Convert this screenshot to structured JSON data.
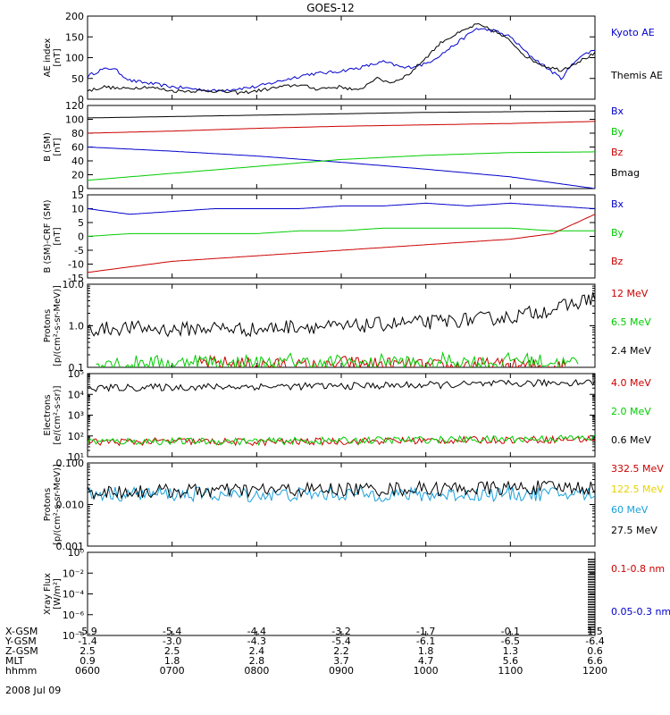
{
  "title": "GOES-12",
  "date_label": "2008 Jul 09",
  "colors": {
    "black": "#000000",
    "blue": "#0000cc",
    "green": "#00cc00",
    "red": "#cc0000",
    "cyan": "#1aa0dc",
    "yellow": "#e6d200"
  },
  "x_ticks": [
    "0600",
    "0700",
    "0800",
    "0900",
    "1000",
    "1100",
    "1200"
  ],
  "ephemeris": [
    {
      "label": "X-GSM",
      "values": [
        "-5.9",
        "-5.4",
        "-4.4",
        "-3.2",
        "-1.7",
        "-0.1",
        "1.5"
      ]
    },
    {
      "label": "Y-GSM",
      "values": [
        "-1.4",
        "-3.0",
        "-4.3",
        "-5.4",
        "-6.1",
        "-6.5",
        "-6.4"
      ]
    },
    {
      "label": "Z-GSM",
      "values": [
        "2.5",
        "2.5",
        "2.4",
        "2.2",
        "1.8",
        "1.3",
        "0.6"
      ]
    },
    {
      "label": "MLT",
      "values": [
        "0.9",
        "1.8",
        "2.8",
        "3.7",
        "4.7",
        "5.6",
        "6.6"
      ]
    },
    {
      "label": "hhmm",
      "values": [
        "0600",
        "0700",
        "0800",
        "0900",
        "1000",
        "1100",
        "1200"
      ]
    }
  ],
  "chart_data": [
    {
      "type": "line",
      "id": "ae",
      "ylabel": [
        "AE index",
        "[nT]"
      ],
      "scale": "linear",
      "ylim": [
        0,
        200
      ],
      "yticks": [
        "0",
        "50",
        "100",
        "150",
        "200"
      ],
      "series": [
        {
          "name": "Kyoto AE",
          "color": "#0000cc",
          "x": [
            6.0,
            6.15,
            6.3,
            6.5,
            7.0,
            7.5,
            7.75,
            8.0,
            8.3,
            8.6,
            8.9,
            9.2,
            9.5,
            9.75,
            10.0,
            10.2,
            10.4,
            10.6,
            10.8,
            11.0,
            11.2,
            11.4,
            11.6,
            11.8,
            12.0
          ],
          "y": [
            55,
            70,
            75,
            45,
            30,
            20,
            25,
            30,
            45,
            60,
            65,
            75,
            90,
            75,
            85,
            110,
            140,
            170,
            165,
            150,
            110,
            80,
            50,
            100,
            120
          ]
        },
        {
          "name": "Themis AE",
          "color": "#000000",
          "x": [
            6.0,
            6.2,
            6.4,
            6.7,
            7.0,
            7.5,
            7.8,
            8.0,
            8.3,
            8.5,
            8.7,
            9.0,
            9.2,
            9.4,
            9.6,
            9.8,
            10.0,
            10.2,
            10.4,
            10.6,
            10.8,
            11.0,
            11.2,
            11.4,
            11.6,
            11.8,
            12.0
          ],
          "y": [
            20,
            30,
            25,
            30,
            20,
            20,
            15,
            20,
            30,
            35,
            25,
            30,
            20,
            50,
            40,
            60,
            100,
            140,
            160,
            180,
            165,
            140,
            100,
            80,
            70,
            90,
            110
          ]
        }
      ]
    },
    {
      "type": "line",
      "id": "bsm",
      "ylabel": [
        "B (SM)",
        "[nT]"
      ],
      "scale": "linear",
      "ylim": [
        0,
        120
      ],
      "yticks": [
        "0",
        "20",
        "40",
        "60",
        "80",
        "100",
        "120"
      ],
      "series": [
        {
          "name": "Bx",
          "color": "#0000cc",
          "x": [
            6,
            7,
            8,
            9,
            10,
            11,
            12
          ],
          "y": [
            60,
            54,
            47,
            38,
            28,
            17,
            0
          ]
        },
        {
          "name": "By",
          "color": "#00cc00",
          "x": [
            6,
            7,
            8,
            9,
            10,
            11,
            12
          ],
          "y": [
            12,
            22,
            32,
            42,
            48,
            52,
            53
          ]
        },
        {
          "name": "Bz",
          "color": "#cc0000",
          "x": [
            6,
            7,
            8,
            9,
            10,
            11,
            12
          ],
          "y": [
            80,
            83,
            87,
            90,
            92,
            94,
            97
          ]
        },
        {
          "name": "Bmag",
          "color": "#000000",
          "x": [
            6,
            7,
            8,
            9,
            10,
            11,
            12
          ],
          "y": [
            102,
            104,
            106,
            108,
            110,
            111,
            112
          ]
        }
      ]
    },
    {
      "type": "line",
      "id": "bres",
      "ylabel": [
        "B (SM)-CRF (SM)",
        "[nT]"
      ],
      "scale": "linear",
      "ylim": [
        -15,
        15
      ],
      "yticks": [
        "-15",
        "-10",
        "-5",
        "0",
        "5",
        "10",
        "15"
      ],
      "series": [
        {
          "name": "Bx",
          "color": "#0000cc",
          "x": [
            6,
            6.5,
            7,
            7.5,
            8,
            8.5,
            9,
            9.5,
            10,
            10.5,
            11,
            11.5,
            12
          ],
          "y": [
            10,
            8,
            9,
            10,
            10,
            10,
            11,
            11,
            12,
            11,
            12,
            11,
            10
          ]
        },
        {
          "name": "By",
          "color": "#00cc00",
          "x": [
            6,
            6.5,
            7,
            7.5,
            8,
            8.5,
            9,
            9.5,
            10,
            10.5,
            11,
            11.5,
            12
          ],
          "y": [
            0,
            1,
            1,
            1,
            1,
            2,
            2,
            3,
            3,
            3,
            3,
            2,
            2
          ]
        },
        {
          "name": "Bz",
          "color": "#cc0000",
          "x": [
            6,
            6.5,
            7,
            7.5,
            8,
            8.5,
            9,
            9.5,
            10,
            10.5,
            11,
            11.5,
            12
          ],
          "y": [
            -13,
            -11,
            -9,
            -8,
            -7,
            -6,
            -5,
            -4,
            -3,
            -2,
            -1,
            1,
            8
          ]
        }
      ]
    },
    {
      "type": "line",
      "id": "protons_low",
      "ylabel": [
        "Protons",
        "[p/(cm²-s-sr-MeV)]"
      ],
      "scale": "log",
      "ylim": [
        0.1,
        10
      ],
      "yticks": [
        "0.1",
        "1.0",
        "10.0"
      ],
      "series": [
        {
          "name": "12 MeV",
          "color": "#cc0000",
          "x": [
            7.3,
            7.35,
            8.9,
            8.95,
            10.4,
            10.45,
            11.6,
            11.65
          ],
          "y": [
            0.1,
            0.13,
            0.1,
            0.13,
            0.1,
            0.12,
            0.1,
            0.13
          ]
        },
        {
          "name": "6.5 MeV",
          "color": "#00cc00",
          "x": [
            6.1,
            6.2,
            6.5,
            6.6,
            7.1,
            7.2,
            7.7,
            7.8,
            8.3,
            8.4,
            8.8,
            8.9,
            9.4,
            9.5,
            10.1,
            10.2,
            10.9,
            11.0,
            11.7,
            11.8
          ],
          "y": [
            0.11,
            0.15,
            0.11,
            0.14,
            0.12,
            0.16,
            0.11,
            0.14,
            0.12,
            0.15,
            0.11,
            0.14,
            0.12,
            0.15,
            0.11,
            0.15,
            0.12,
            0.16,
            0.12,
            0.15
          ]
        },
        {
          "name": "2.4 MeV",
          "color": "#000000",
          "x": [
            6.0,
            6.5,
            7.0,
            7.5,
            8.0,
            8.5,
            9.0,
            9.5,
            10.0,
            10.5,
            11.0,
            11.5,
            11.8,
            12.0
          ],
          "y": [
            0.8,
            0.9,
            0.8,
            0.9,
            0.8,
            1.0,
            0.9,
            1.1,
            1.2,
            1.4,
            1.6,
            2.5,
            3.5,
            5.0
          ]
        }
      ]
    },
    {
      "type": "line",
      "id": "electrons",
      "ylabel": [
        "Electrons",
        "[e/(cm²-s-sr)]"
      ],
      "scale": "log",
      "ylim": [
        10,
        100000
      ],
      "yticks": [
        "10¹",
        "10²",
        "10³",
        "10⁴",
        "10⁵"
      ],
      "series": [
        {
          "name": "4.0 MeV",
          "color": "#cc0000",
          "x": [
            6,
            7,
            8,
            9,
            10,
            11,
            12
          ],
          "y": [
            50,
            55,
            50,
            55,
            60,
            65,
            70
          ]
        },
        {
          "name": "2.0 MeV",
          "color": "#00cc00",
          "x": [
            6,
            7,
            8,
            9,
            10,
            11,
            12
          ],
          "y": [
            55,
            55,
            55,
            60,
            65,
            70,
            80
          ]
        },
        {
          "name": "0.6 MeV",
          "color": "#000000",
          "x": [
            6,
            7,
            8,
            9,
            10,
            11,
            12
          ],
          "y": [
            20000,
            22000,
            24000,
            25000,
            28000,
            32000,
            40000
          ]
        }
      ]
    },
    {
      "type": "line",
      "id": "protons_high",
      "ylabel": [
        "Protons",
        "[p/(cm²-s-sr-MeV)]"
      ],
      "scale": "log",
      "ylim": [
        0.001,
        0.1
      ],
      "yticks": [
        "0.001",
        "0.010",
        "0.100"
      ],
      "series": [
        {
          "name": "332.5 MeV",
          "color": "#cc0000",
          "x": [],
          "y": []
        },
        {
          "name": "122.5 MeV",
          "color": "#e6d200",
          "x": [],
          "y": []
        },
        {
          "name": "60 MeV",
          "color": "#1aa0dc",
          "x": [
            6,
            7,
            8,
            9,
            10,
            11,
            12
          ],
          "y": [
            0.018,
            0.018,
            0.017,
            0.018,
            0.017,
            0.018,
            0.018
          ]
        },
        {
          "name": "27.5 MeV",
          "color": "#000000",
          "x": [
            6,
            7,
            8,
            9,
            10,
            11,
            12
          ],
          "y": [
            0.02,
            0.021,
            0.022,
            0.023,
            0.024,
            0.025,
            0.026
          ]
        }
      ]
    },
    {
      "type": "line",
      "id": "xray",
      "ylabel": [
        "Xray  Flux",
        "[W/m²]"
      ],
      "scale": "log",
      "ylim": [
        1e-08,
        1
      ],
      "yticks": [
        "10⁻⁸",
        "10⁻⁶",
        "10⁻⁴",
        "10⁻²",
        "10⁰"
      ],
      "series": [
        {
          "name": "0.1-0.8 nm",
          "color": "#cc0000",
          "x": [],
          "y": []
        },
        {
          "name": "0.05-0.3 nm",
          "color": "#0000cc",
          "x": [],
          "y": []
        }
      ]
    }
  ]
}
